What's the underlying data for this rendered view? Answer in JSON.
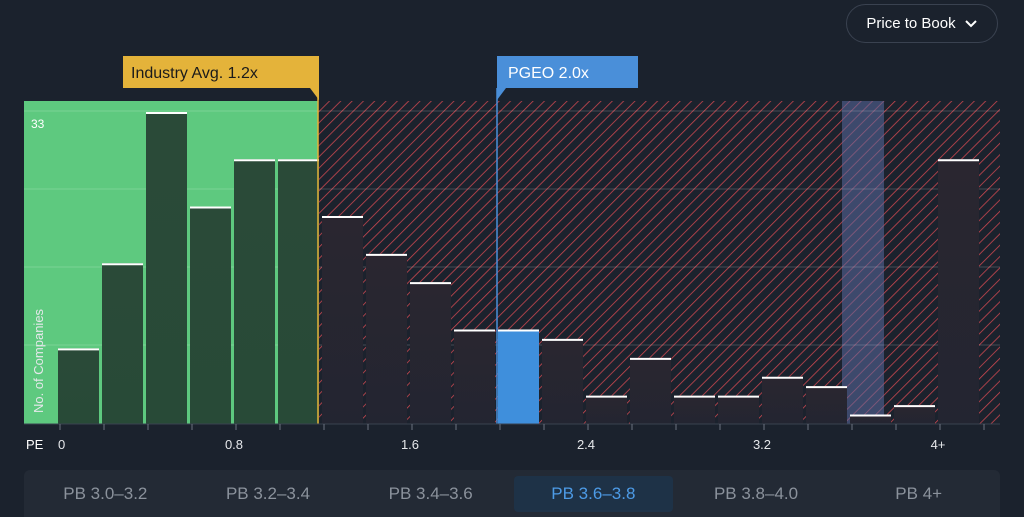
{
  "dropdown": {
    "label": "Price to Book",
    "icon": "chevron-down-icon"
  },
  "colors": {
    "background": "#1b222d",
    "industry_zone": "#5ec97f",
    "industry_bar": "#244232",
    "above_zone_hatch": "#c9474f",
    "company_bar": "#3f8fdc",
    "industry_marker": "#e4b33a",
    "company_marker": "#4a8fd9",
    "highlight_band": "#5a6aa0"
  },
  "chart_data": {
    "type": "bar",
    "ylabel": "No. of Companies",
    "xlabel": "PE",
    "y_top_label": "33",
    "ylim": [
      0,
      33
    ],
    "x_ticks": [
      "0",
      "0.8",
      "1.6",
      "2.4",
      "3.2",
      "4+"
    ],
    "x_tick_values": [
      0,
      0.8,
      1.6,
      2.4,
      3.2,
      4.0
    ],
    "bin_width": 0.2,
    "bins": [
      0,
      0.2,
      0.4,
      0.6,
      0.8,
      1.0,
      1.2,
      1.4,
      1.6,
      1.8,
      2.0,
      2.2,
      2.4,
      2.6,
      2.8,
      3.0,
      3.2,
      3.4,
      3.6,
      3.8,
      4.0
    ],
    "values": [
      8,
      17,
      33,
      23,
      28,
      28,
      22,
      18,
      15,
      10,
      10,
      9,
      3,
      7,
      3,
      3,
      5,
      4,
      1,
      2,
      28
    ],
    "industry_avg": {
      "label": "Industry Avg. 1.2x",
      "value": 1.2
    },
    "company": {
      "label": "PGEO 2.0x",
      "value": 2.0,
      "bin_index": 10
    },
    "highlight_bin_index": 18
  },
  "tabs": [
    {
      "label": "PB 3.0–3.2",
      "active": false
    },
    {
      "label": "PB 3.2–3.4",
      "active": false
    },
    {
      "label": "PB 3.4–3.6",
      "active": false
    },
    {
      "label": "PB 3.6–3.8",
      "active": true
    },
    {
      "label": "PB 3.8–4.0",
      "active": false
    },
    {
      "label": "PB 4+",
      "active": false
    }
  ]
}
